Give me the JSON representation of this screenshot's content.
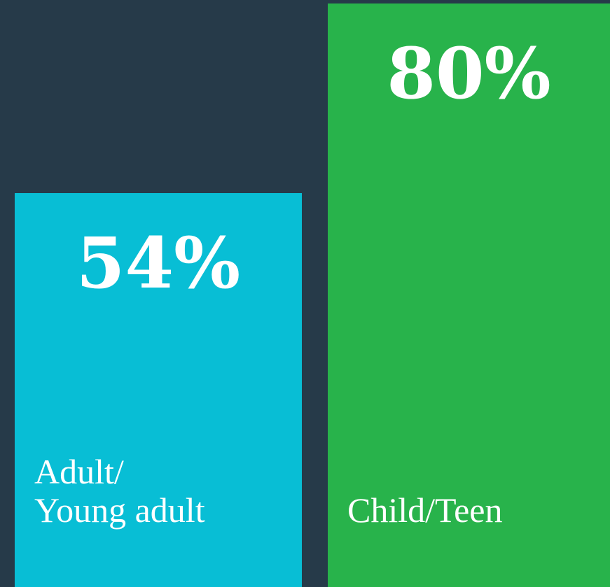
{
  "chart_data": {
    "type": "bar",
    "categories": [
      "Adult/\nYoung adult",
      "Child/Teen"
    ],
    "values": [
      54,
      80
    ],
    "value_labels": [
      "54%",
      "80%"
    ],
    "colors": [
      "#08bed5",
      "#28b34b"
    ],
    "ylim": [
      0,
      80.5
    ]
  }
}
